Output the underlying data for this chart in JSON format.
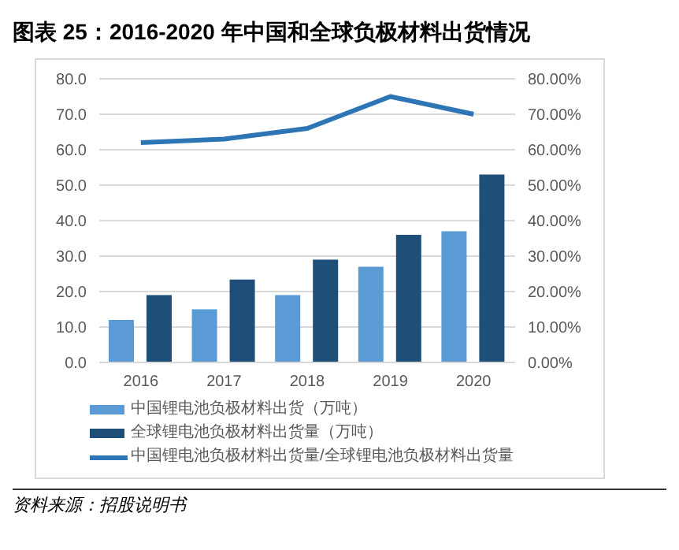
{
  "chart_data": {
    "type": "bar",
    "title": "图表 25：2016-2020 年中国和全球负极材料出货情况",
    "categories": [
      "2016",
      "2017",
      "2018",
      "2019",
      "2020"
    ],
    "series": [
      {
        "name": "中国锂电池负极材料出货（万吨）",
        "color": "#5b9bd5",
        "values": [
          12,
          15,
          19,
          27,
          37
        ]
      },
      {
        "name": "全球锂电池负极材料出货量（万吨）",
        "color": "#1f4e79",
        "values": [
          19,
          23.4,
          29,
          36,
          53
        ]
      },
      {
        "name": "中国锂电池负极材料出货量/全球锂电池负极材料出货量",
        "type": "line",
        "axis": "y2",
        "color": "#2e75b6",
        "values": [
          62,
          63,
          66,
          75,
          70
        ]
      }
    ],
    "ylim": [
      0,
      80
    ],
    "yticks": [
      {
        "value": 0,
        "label": "0.0"
      },
      {
        "value": 10,
        "label": "10.0"
      },
      {
        "value": 20,
        "label": "20.0"
      },
      {
        "value": 30,
        "label": "30.0"
      },
      {
        "value": 40,
        "label": "40.0"
      },
      {
        "value": 50,
        "label": "50.0"
      },
      {
        "value": 60,
        "label": "60.0"
      },
      {
        "value": 70,
        "label": "70.0"
      },
      {
        "value": 80,
        "label": "80.0"
      }
    ],
    "y2lim": [
      0,
      80
    ],
    "y2ticks": [
      {
        "value": 0,
        "label": "0.00%"
      },
      {
        "value": 10,
        "label": "10.00%"
      },
      {
        "value": 20,
        "label": "20.00%"
      },
      {
        "value": 30,
        "label": "30.00%"
      },
      {
        "value": 40,
        "label": "40.00%"
      },
      {
        "value": 50,
        "label": "50.00%"
      },
      {
        "value": 60,
        "label": "60.00%"
      },
      {
        "value": 70,
        "label": "70.00%"
      },
      {
        "value": 80,
        "label": "80.00%"
      }
    ],
    "grid": "y",
    "legend": "bottom",
    "marker": "none",
    "annotations": [
      "资料来源：招股说明书"
    ]
  }
}
